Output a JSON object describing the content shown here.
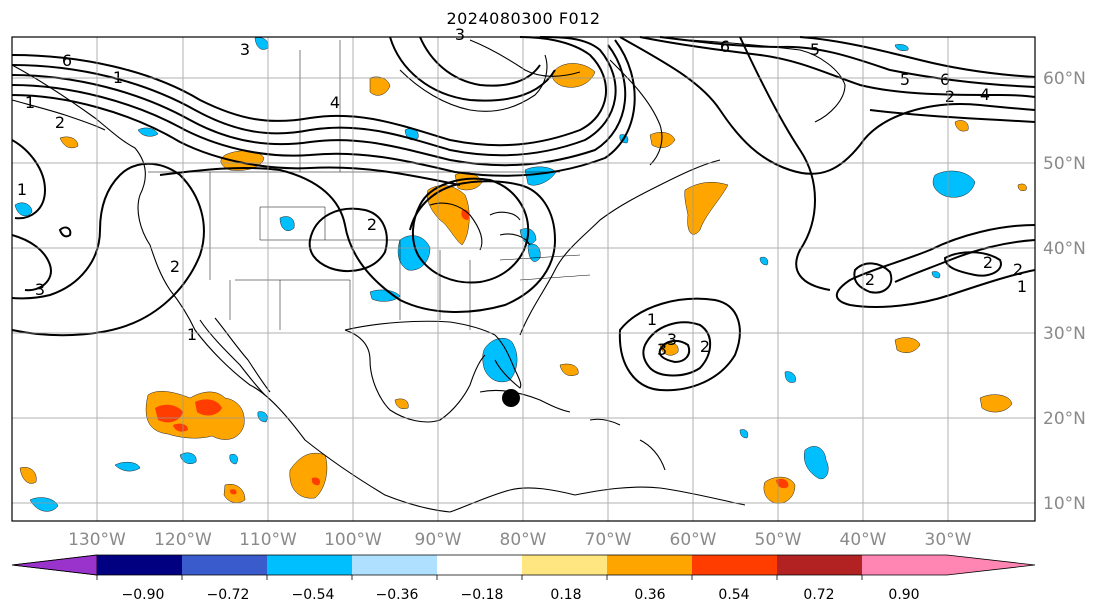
{
  "title": "2024080300 F012",
  "lat_labels": [
    "60°N",
    "50°N",
    "40°N",
    "30°N",
    "20°N",
    "10°N"
  ],
  "lon_labels": [
    "130°W",
    "120°W",
    "110°W",
    "100°W",
    "90°W",
    "80°W",
    "70°W",
    "60°W",
    "50°W",
    "40°W",
    "30°W"
  ],
  "colorbar": {
    "ticks": [
      "−0.90",
      "−0.72",
      "−0.54",
      "−0.36",
      "−0.18",
      "0.18",
      "0.36",
      "0.54",
      "0.72",
      "0.90"
    ],
    "colors": [
      "#9a33cc",
      "#000080",
      "#3a5bcc",
      "#00bfff",
      "#b0e0ff",
      "#ffffff",
      "#ffe680",
      "#ffa500",
      "#ff3d00",
      "#b22222",
      "#ff85b3"
    ]
  },
  "contour_labels": [
    "6",
    "3",
    "2",
    "1",
    "4",
    "5",
    "6",
    "5",
    "6",
    "2",
    "4",
    "1",
    "2",
    "3",
    "3",
    "2",
    "1",
    "2",
    "2",
    "3",
    "2",
    "1",
    "3",
    "2",
    "1",
    "1"
  ],
  "map": {
    "grid": true,
    "shaded_field_colors": {
      "positive_low": "#ffa500",
      "positive_mid": "#ff3d00",
      "negative_low": "#00bfff"
    },
    "marker": "storm-center-dot"
  }
}
